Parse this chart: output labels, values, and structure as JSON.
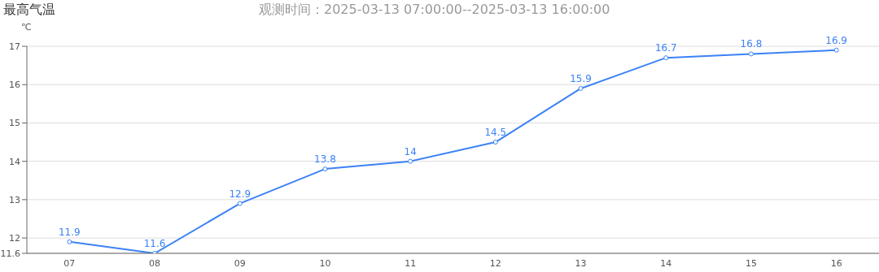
{
  "chart_data": {
    "type": "line",
    "title": "最高气温",
    "subtitle": "观测时间：2025-03-13 07:00:00--2025-03-13 16:00:00",
    "ylabel": "℃",
    "categories": [
      "07",
      "08",
      "09",
      "10",
      "11",
      "12",
      "13",
      "14",
      "15",
      "16"
    ],
    "series": [
      {
        "color": "#3b82f6",
        "values": [
          11.9,
          11.6,
          12.9,
          13.8,
          14,
          14.5,
          15.9,
          16.7,
          16.8,
          16.9
        ]
      }
    ],
    "ylim": [
      11.6,
      17
    ],
    "yticks": [
      11.6,
      12,
      13,
      14,
      15,
      16,
      17
    ],
    "grid": "y",
    "legend": false,
    "marker": "circle",
    "line_style": "solid",
    "data_labels": true
  }
}
